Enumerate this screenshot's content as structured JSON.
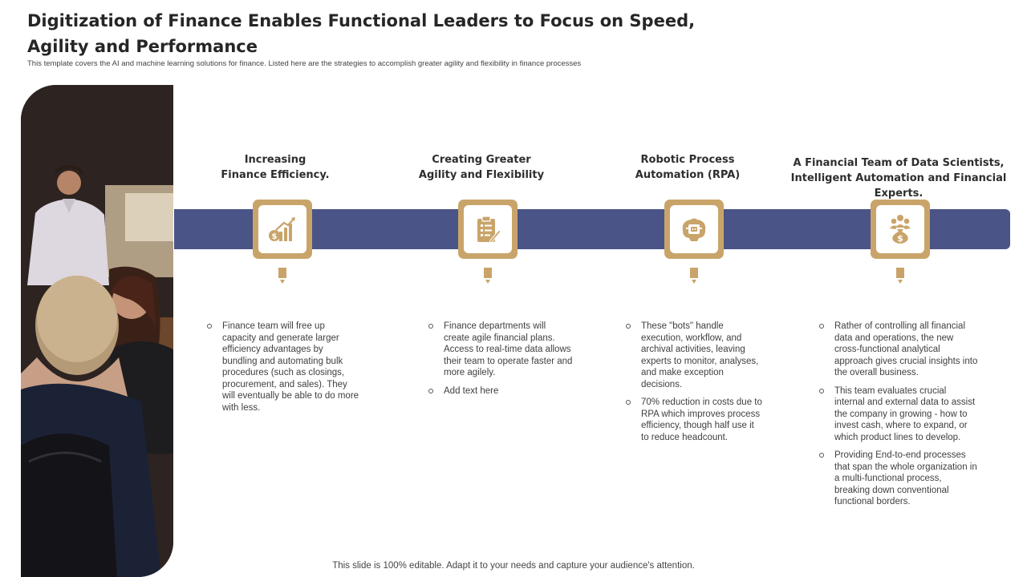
{
  "slide": {
    "title": "Digitization of Finance Enables Functional Leaders to Focus on Speed, Agility and Performance",
    "subtitle": "This template covers the AI and machine learning solutions for finance. Listed here are the strategies to accomplish greater agility and flexibility in  finance processes",
    "footer": "This slide is 100% editable. Adapt it to your needs and capture your audience's attention."
  },
  "colors": {
    "band": "#4a5486",
    "accent": "#c9a46a",
    "title": "#262626"
  },
  "columns": [
    {
      "heading": "Increasing\nFinance Efficiency.",
      "icon": "finance-growth-chart-icon",
      "bullets": [
        "Finance team will free up capacity and generate larger efficiency advantages by bundling and automating bulk procedures (such as closings, procurement, and sales). They will eventually be able to do more with less."
      ]
    },
    {
      "heading": "Creating Greater\nAgility and Flexibility",
      "icon": "clipboard-plan-icon",
      "bullets": [
        "Finance departments will create agile financial plans. Access to real-time data allows their team to operate faster and more agilely.",
        "Add text here"
      ]
    },
    {
      "heading": "Robotic Process\nAutomation (RPA)",
      "icon": "robot-brain-icon",
      "bullets": [
        "These \"bots\" handle execution, workflow, and archival activities, leaving experts to monitor, analyses, and make exception decisions.",
        "70% reduction in costs due to RPA which improves process efficiency, though half use it to reduce headcount."
      ]
    },
    {
      "heading": "A Financial Team of Data Scientists, Intelligent Automation and Financial Experts.",
      "icon": "team-money-icon",
      "bullets": [
        "Rather of controlling all financial data and operations, the new cross-functional analytical approach gives crucial insights into the overall business.",
        "This team evaluates crucial internal and external data to assist the company in growing - how to invest cash, where to expand, or which product lines to develop.",
        "Providing End-to-end processes that span the whole organization in a multi-functional process, breaking down conventional functional borders."
      ]
    }
  ]
}
